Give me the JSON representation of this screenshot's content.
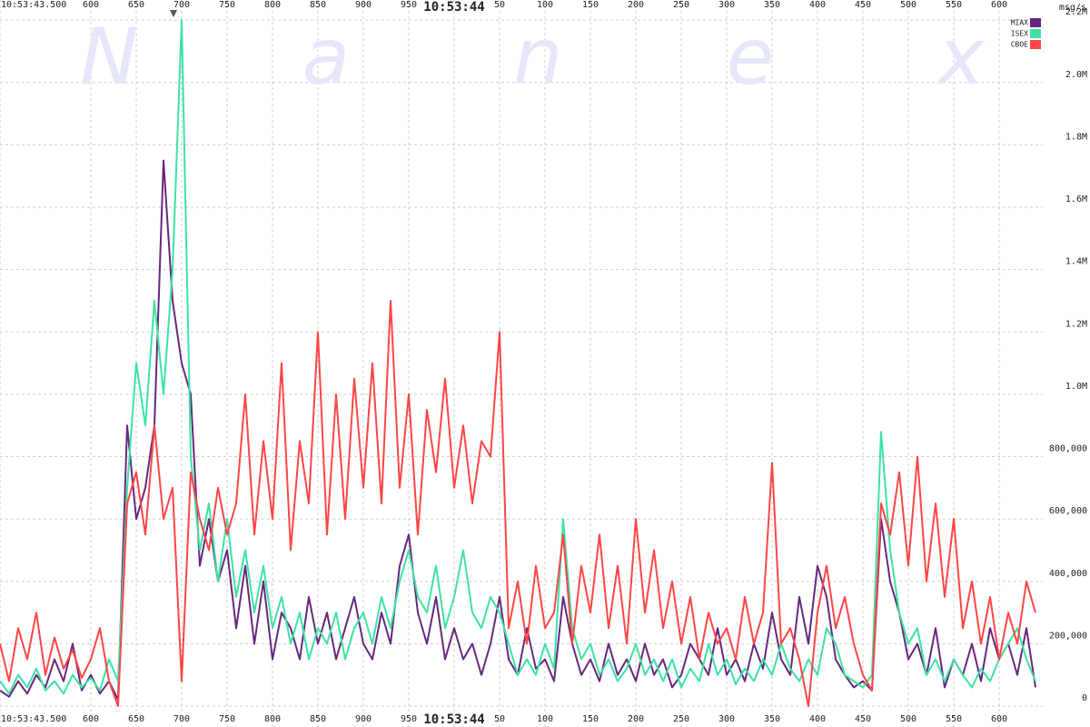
{
  "chart_data": {
    "type": "line",
    "watermark": "Nanex",
    "ylabel": "msg/s",
    "legend": "top-right",
    "grid": true,
    "xlim": [
      500,
      1648
    ],
    "ylim": [
      0,
      2250000
    ],
    "xticks": [
      {
        "value": 500,
        "label": "10:53:43.500"
      },
      600,
      650,
      700,
      750,
      800,
      850,
      900,
      950,
      {
        "value": 1000,
        "label": "10:53:44"
      },
      {
        "value": 1050,
        "label": "50"
      },
      {
        "value": 1100,
        "label": "100"
      },
      {
        "value": 1150,
        "label": "150"
      },
      {
        "value": 1200,
        "label": "200"
      },
      {
        "value": 1250,
        "label": "250"
      },
      {
        "value": 1300,
        "label": "300"
      },
      {
        "value": 1350,
        "label": "350"
      },
      {
        "value": 1400,
        "label": "400"
      },
      {
        "value": 1450,
        "label": "450"
      },
      {
        "value": 1500,
        "label": "500"
      },
      {
        "value": 1550,
        "label": "550"
      },
      {
        "value": 1600,
        "label": "600"
      }
    ],
    "yticks": [
      0,
      {
        "value": 200000,
        "label": "200,000"
      },
      {
        "value": 400000,
        "label": "400,000"
      },
      {
        "value": 600000,
        "label": "600,000"
      },
      {
        "value": 800000,
        "label": "800,000"
      },
      {
        "value": 1000000,
        "label": "1.0M"
      },
      {
        "value": 1200000,
        "label": "1.2M"
      },
      {
        "value": 1400000,
        "label": "1.4M"
      },
      {
        "value": 1600000,
        "label": "1.6M"
      },
      {
        "value": 1800000,
        "label": "1.8M"
      },
      {
        "value": 2000000,
        "label": "2.0M"
      },
      {
        "value": 2200000,
        "label": "2.2M"
      }
    ],
    "x": [
      500,
      510,
      520,
      530,
      540,
      550,
      560,
      570,
      580,
      590,
      600,
      610,
      620,
      630,
      640,
      650,
      660,
      670,
      680,
      690,
      700,
      710,
      720,
      730,
      740,
      750,
      760,
      770,
      780,
      790,
      800,
      810,
      820,
      830,
      840,
      850,
      860,
      870,
      880,
      890,
      900,
      910,
      920,
      930,
      940,
      950,
      960,
      970,
      980,
      990,
      1000,
      1010,
      1020,
      1030,
      1040,
      1050,
      1060,
      1070,
      1080,
      1090,
      1100,
      1110,
      1120,
      1130,
      1140,
      1150,
      1160,
      1170,
      1180,
      1190,
      1200,
      1210,
      1220,
      1230,
      1240,
      1250,
      1260,
      1270,
      1280,
      1290,
      1300,
      1310,
      1320,
      1330,
      1340,
      1350,
      1360,
      1370,
      1380,
      1390,
      1400,
      1410,
      1420,
      1430,
      1440,
      1450,
      1460,
      1470,
      1480,
      1490,
      1500,
      1510,
      1520,
      1530,
      1540,
      1550,
      1560,
      1570,
      1580,
      1590,
      1600,
      1610,
      1620,
      1630,
      1640
    ],
    "series": [
      {
        "name": "CBOE",
        "color": "#ff4545",
        "values": [
          200000,
          80000,
          250000,
          150000,
          300000,
          100000,
          220000,
          120000,
          180000,
          90000,
          150000,
          250000,
          80000,
          0,
          650000,
          750000,
          550000,
          900000,
          600000,
          700000,
          80000,
          750000,
          600000,
          500000,
          700000,
          550000,
          650000,
          1000000,
          550000,
          850000,
          600000,
          1100000,
          500000,
          850000,
          650000,
          1200000,
          550000,
          1000000,
          600000,
          1050000,
          700000,
          1100000,
          650000,
          1300000,
          700000,
          1000000,
          550000,
          950000,
          750000,
          1050000,
          700000,
          900000,
          650000,
          850000,
          800000,
          1200000,
          250000,
          400000,
          200000,
          450000,
          250000,
          300000,
          550000,
          200000,
          450000,
          300000,
          550000,
          250000,
          450000,
          200000,
          600000,
          300000,
          500000,
          250000,
          400000,
          200000,
          350000,
          150000,
          300000,
          200000,
          250000,
          150000,
          350000,
          200000,
          300000,
          780000,
          200000,
          250000,
          150000,
          0,
          300000,
          450000,
          250000,
          350000,
          200000,
          100000,
          50000,
          650000,
          550000,
          750000,
          450000,
          800000,
          400000,
          650000,
          350000,
          600000,
          250000,
          400000,
          200000,
          350000,
          150000,
          300000,
          200000,
          400000,
          300000
        ]
      },
      {
        "name": "ISEX",
        "color": "#3de3a3",
        "values": [
          80000,
          40000,
          100000,
          60000,
          120000,
          50000,
          80000,
          40000,
          100000,
          60000,
          90000,
          50000,
          150000,
          80000,
          700000,
          1100000,
          900000,
          1300000,
          1000000,
          1400000,
          2200000,
          800000,
          500000,
          650000,
          400000,
          600000,
          350000,
          500000,
          300000,
          450000,
          250000,
          350000,
          200000,
          300000,
          150000,
          250000,
          200000,
          300000,
          150000,
          250000,
          300000,
          200000,
          350000,
          250000,
          400000,
          500000,
          350000,
          300000,
          450000,
          250000,
          350000,
          500000,
          300000,
          250000,
          350000,
          300000,
          200000,
          100000,
          150000,
          100000,
          200000,
          120000,
          600000,
          250000,
          150000,
          200000,
          100000,
          150000,
          80000,
          120000,
          200000,
          100000,
          150000,
          80000,
          150000,
          60000,
          120000,
          80000,
          200000,
          100000,
          150000,
          70000,
          120000,
          80000,
          150000,
          100000,
          200000,
          120000,
          80000,
          150000,
          100000,
          250000,
          200000,
          100000,
          80000,
          60000,
          100000,
          880000,
          500000,
          300000,
          200000,
          250000,
          100000,
          150000,
          80000,
          150000,
          100000,
          60000,
          120000,
          80000,
          150000,
          200000,
          250000,
          150000,
          80000
        ]
      },
      {
        "name": "MIAX",
        "color": "#66287e",
        "values": [
          50000,
          30000,
          80000,
          40000,
          100000,
          60000,
          150000,
          80000,
          200000,
          50000,
          100000,
          40000,
          80000,
          20000,
          900000,
          600000,
          700000,
          900000,
          1750000,
          1300000,
          1100000,
          1000000,
          450000,
          600000,
          400000,
          500000,
          250000,
          450000,
          200000,
          400000,
          150000,
          300000,
          250000,
          150000,
          350000,
          200000,
          300000,
          150000,
          250000,
          350000,
          200000,
          150000,
          300000,
          200000,
          450000,
          550000,
          300000,
          200000,
          350000,
          150000,
          250000,
          150000,
          200000,
          100000,
          200000,
          350000,
          150000,
          100000,
          250000,
          120000,
          150000,
          80000,
          350000,
          200000,
          100000,
          150000,
          80000,
          200000,
          100000,
          150000,
          80000,
          200000,
          100000,
          150000,
          60000,
          100000,
          200000,
          150000,
          100000,
          250000,
          100000,
          150000,
          80000,
          200000,
          120000,
          300000,
          150000,
          100000,
          350000,
          200000,
          450000,
          350000,
          150000,
          100000,
          60000,
          80000,
          50000,
          600000,
          400000,
          300000,
          150000,
          200000,
          100000,
          250000,
          60000,
          150000,
          100000,
          200000,
          80000,
          250000,
          150000,
          200000,
          100000,
          250000,
          60000
        ]
      }
    ]
  }
}
